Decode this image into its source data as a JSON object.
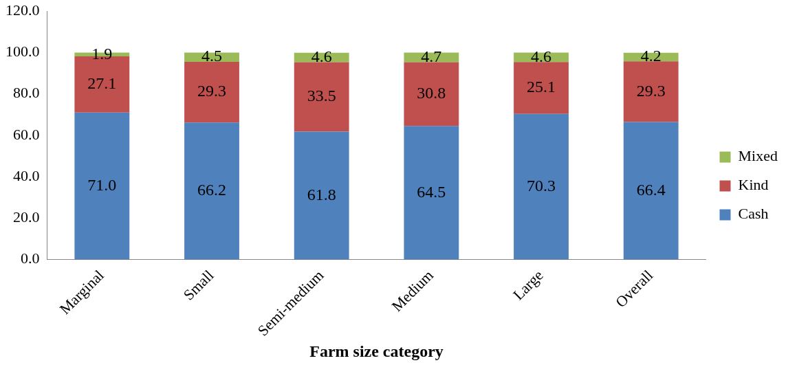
{
  "chart_data": {
    "type": "bar",
    "stacked": true,
    "xlabel": "Farm size category",
    "categories": [
      "Marginal",
      "Small",
      "Semi-medium",
      "Medium",
      "Large",
      "Overall"
    ],
    "series": [
      {
        "name": "Cash",
        "color": "#4f81bd",
        "values": [
          71.0,
          66.2,
          61.8,
          64.5,
          70.3,
          66.4
        ],
        "value_labels": [
          "71.0",
          "66.2",
          "61.8",
          "64.5",
          "70.3",
          "66.4"
        ]
      },
      {
        "name": "Kind",
        "color": "#c0504d",
        "values": [
          27.1,
          29.3,
          33.5,
          30.8,
          25.1,
          29.3
        ],
        "value_labels": [
          "27.1",
          "29.3",
          "33.5",
          "30.8",
          "25.1",
          "29.3"
        ]
      },
      {
        "name": "Mixed",
        "color": "#9bbb59",
        "values": [
          1.9,
          4.5,
          4.6,
          4.7,
          4.6,
          4.2
        ],
        "value_labels": [
          "1.9",
          "4.5",
          "4.6",
          "4.7",
          "4.6",
          "4.2"
        ]
      }
    ],
    "ylim": [
      0,
      120
    ],
    "yticks": [
      {
        "value": 0,
        "label": "0.0"
      },
      {
        "value": 20,
        "label": "20.0"
      },
      {
        "value": 40,
        "label": "40.0"
      },
      {
        "value": 60,
        "label": "60.0"
      },
      {
        "value": 80,
        "label": "80.0"
      },
      {
        "value": 100,
        "label": "100.0"
      },
      {
        "value": 120,
        "label": "120.0"
      }
    ],
    "grid": false,
    "legend": "right"
  }
}
